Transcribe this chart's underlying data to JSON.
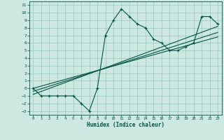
{
  "xlabel": "Humidex (Indice chaleur)",
  "bg_color": "#cce8e0",
  "grid_color": "#99c8c0",
  "line_color": "#005544",
  "xlim": [
    -0.5,
    23.5
  ],
  "ylim": [
    -3.5,
    11.5
  ],
  "xticks": [
    0,
    1,
    2,
    3,
    4,
    5,
    6,
    7,
    8,
    9,
    10,
    11,
    12,
    13,
    14,
    15,
    16,
    17,
    18,
    19,
    20,
    21,
    22,
    23
  ],
  "yticks": [
    -3,
    -2,
    -1,
    0,
    1,
    2,
    3,
    4,
    5,
    6,
    7,
    8,
    9,
    10,
    11
  ],
  "scatter_x": [
    0,
    1,
    2,
    3,
    4,
    5,
    6,
    7,
    8,
    9,
    10,
    11,
    12,
    13,
    14,
    15,
    16,
    17,
    18,
    19,
    20,
    21,
    22,
    23
  ],
  "scatter_y": [
    0,
    -1,
    -1,
    -1,
    -1,
    -1,
    -2,
    -3,
    0,
    7,
    9,
    10.5,
    9.5,
    8.5,
    8,
    6.5,
    6,
    5,
    5,
    5.5,
    6,
    9.5,
    9.5,
    8.5
  ],
  "reg_lines": [
    {
      "x": [
        0,
        23
      ],
      "y": [
        -0.8,
        8.2
      ]
    },
    {
      "x": [
        0,
        23
      ],
      "y": [
        -0.4,
        7.4
      ]
    },
    {
      "x": [
        0,
        23
      ],
      "y": [
        0.0,
        6.8
      ]
    }
  ]
}
